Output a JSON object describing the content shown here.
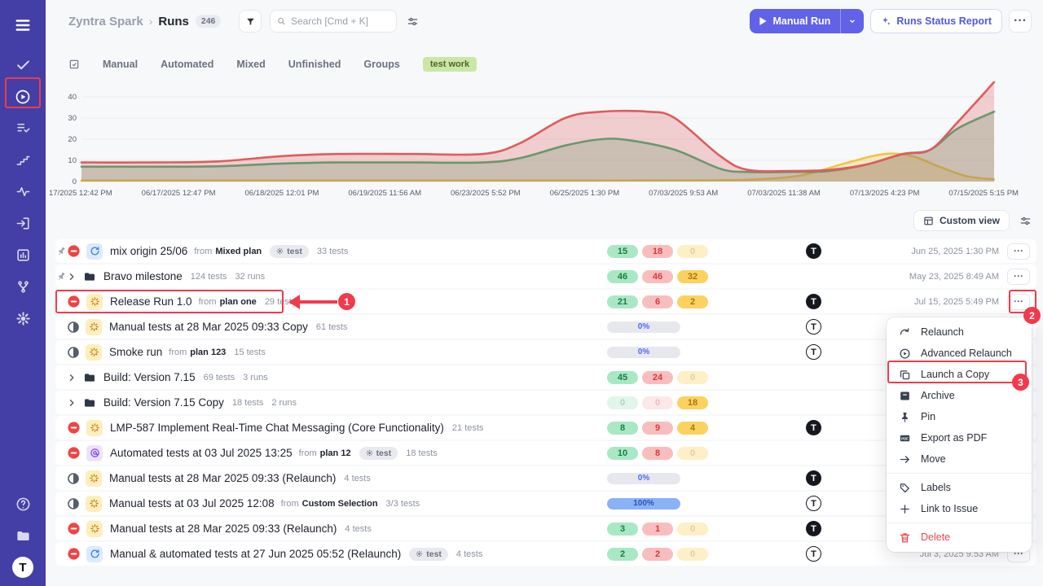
{
  "colors": {
    "sidebar_bg": "#443fa6",
    "accent": "#6062e8",
    "annotation": "#f23a4c",
    "chart_red": "#e05c5c",
    "chart_green": "#3fae73",
    "chart_yellow": "#eec643",
    "badge_green_text": "#17803d",
    "badge_red_text": "#dc3a3a",
    "badge_yellow_text": "#b07409"
  },
  "sidebar": {
    "top_icons": [
      "hamburger-menu",
      "checkmark",
      "runs-play",
      "test-plans",
      "milestones-steps",
      "defects-pulse",
      "requirements-import",
      "reports-chart",
      "integrations-branch",
      "settings-gear"
    ],
    "active_icon": "runs-play",
    "bottom_icons": [
      "help-circle",
      "projects-folder"
    ],
    "avatar_letter": "T"
  },
  "header": {
    "breadcrumb": {
      "project": "Zyntra Spark",
      "separator": "›",
      "section": "Runs",
      "count": "246"
    },
    "search": {
      "placeholder": "Search [Cmd + K]"
    },
    "primary_button": "Manual Run",
    "report_button": "Runs Status Report"
  },
  "tabs": {
    "items": [
      "Manual",
      "Automated",
      "Mixed",
      "Unfinished",
      "Groups"
    ],
    "filter_tag": "test work"
  },
  "chart_data": {
    "type": "area",
    "title": "",
    "ylim": [
      0,
      40
    ],
    "y_ticks": [
      0,
      10,
      20,
      30,
      40
    ],
    "x_labels": [
      "17/2025 12:42 PM",
      "06/17/2025 12:47 PM",
      "06/18/2025 12:01 PM",
      "06/19/2025 11:56 AM",
      "06/23/2025 5:52 PM",
      "06/25/2025 1:30 PM",
      "07/03/2025 9:53 AM",
      "07/03/2025 11:38 AM",
      "07/13/2025 4:23 PM",
      "07/15/2025 5:15 PM"
    ],
    "grid": true,
    "legend": false,
    "series": [
      {
        "name": "failed-red",
        "color": "#e05c5c",
        "fill": "rgba(224,92,92,0.28)",
        "points": [
          [
            0,
            9
          ],
          [
            0.08,
            9
          ],
          [
            0.15,
            9.5
          ],
          [
            0.22,
            12
          ],
          [
            0.28,
            13
          ],
          [
            0.36,
            13
          ],
          [
            0.44,
            13
          ],
          [
            0.48,
            18
          ],
          [
            0.53,
            30
          ],
          [
            0.57,
            33
          ],
          [
            0.62,
            33
          ],
          [
            0.65,
            30
          ],
          [
            0.7,
            12
          ],
          [
            0.73,
            5.5
          ],
          [
            0.78,
            5
          ],
          [
            0.82,
            5.5
          ],
          [
            0.86,
            8
          ],
          [
            0.9,
            13
          ],
          [
            0.93,
            15
          ],
          [
            0.96,
            28
          ],
          [
            1,
            47
          ]
        ]
      },
      {
        "name": "passed-green",
        "color": "#3fae73",
        "fill": "rgba(63,174,115,0.28)",
        "points": [
          [
            0,
            7
          ],
          [
            0.08,
            7
          ],
          [
            0.15,
            7.2
          ],
          [
            0.22,
            8.5
          ],
          [
            0.28,
            9
          ],
          [
            0.36,
            9
          ],
          [
            0.44,
            9
          ],
          [
            0.48,
            11
          ],
          [
            0.53,
            17
          ],
          [
            0.57,
            20
          ],
          [
            0.6,
            19.5
          ],
          [
            0.65,
            15
          ],
          [
            0.7,
            6
          ],
          [
            0.73,
            4.5
          ],
          [
            0.78,
            4.5
          ],
          [
            0.82,
            5
          ],
          [
            0.86,
            8
          ],
          [
            0.9,
            13
          ],
          [
            0.93,
            15
          ],
          [
            0.96,
            25
          ],
          [
            1,
            33
          ]
        ]
      },
      {
        "name": "in-progress-yellow",
        "color": "#eec643",
        "fill": "rgba(238,198,67,0.3)",
        "points": [
          [
            0,
            0.4
          ],
          [
            0.3,
            0.4
          ],
          [
            0.55,
            0.4
          ],
          [
            0.68,
            0.5
          ],
          [
            0.74,
            1
          ],
          [
            0.79,
            3
          ],
          [
            0.84,
            9
          ],
          [
            0.88,
            13
          ],
          [
            0.91,
            12
          ],
          [
            0.94,
            7
          ],
          [
            0.97,
            2.5
          ],
          [
            1,
            1
          ]
        ]
      }
    ]
  },
  "toolbar": {
    "custom_view_label": "Custom view"
  },
  "runs": [
    {
      "pinned": true,
      "status": "blocked",
      "type": "mixed",
      "title": "mix origin 25/06",
      "from_label": "from",
      "plan": "Mixed plan",
      "tag": "test",
      "tests": "33 tests",
      "badges": [
        {
          "v": "15",
          "c": "g",
          "solid": true
        },
        {
          "v": "18",
          "c": "r",
          "solid": true
        },
        {
          "v": "0",
          "c": "y",
          "solid": false
        }
      ],
      "avatar": "filled",
      "date": "Jun 25, 2025 1:30 PM"
    },
    {
      "pinned": true,
      "chevron": true,
      "folder": true,
      "title": "Bravo milestone",
      "tests": "124 tests",
      "runs_count": "32 runs",
      "badges": [
        {
          "v": "46",
          "c": "g",
          "solid": true
        },
        {
          "v": "46",
          "c": "r",
          "solid": true
        },
        {
          "v": "32",
          "c": "y",
          "solid": true
        }
      ],
      "date": "May 23, 2025 8:49 AM"
    },
    {
      "status": "blocked",
      "type": "manual",
      "title": "Release Run 1.0",
      "from_label": "from",
      "plan": "plan one",
      "tests": "29 tests",
      "badges": [
        {
          "v": "21",
          "c": "g",
          "solid": true
        },
        {
          "v": "6",
          "c": "r",
          "solid": true
        },
        {
          "v": "2",
          "c": "y",
          "solid": true
        }
      ],
      "avatar": "filled",
      "date": "Jul 15, 2025 5:49 PM"
    },
    {
      "status": "in_progress",
      "type": "manual",
      "title": "Manual tests at 28 Mar 2025 09:33 Copy",
      "tests": "61 tests",
      "progress": {
        "label": "0%",
        "fill": 0
      },
      "avatar": "outline"
    },
    {
      "status": "in_progress",
      "type": "manual",
      "title": "Smoke run",
      "from_label": "from",
      "plan": "plan 123",
      "tests": "15 tests",
      "progress": {
        "label": "0%",
        "fill": 0
      },
      "avatar": "outline"
    },
    {
      "chevron": true,
      "folder": true,
      "title": "Build: Version 7.15",
      "tests": "69 tests",
      "runs_count": "3 runs",
      "badges": [
        {
          "v": "45",
          "c": "g",
          "solid": true
        },
        {
          "v": "24",
          "c": "r",
          "solid": true
        },
        {
          "v": "0",
          "c": "y",
          "solid": false
        }
      ]
    },
    {
      "chevron": true,
      "folder": true,
      "title": "Build: Version 7.15 Copy",
      "tests": "18 tests",
      "runs_count": "2 runs",
      "badges": [
        {
          "v": "0",
          "c": "g",
          "solid": false
        },
        {
          "v": "0",
          "c": "r",
          "solid": false
        },
        {
          "v": "18",
          "c": "y",
          "solid": true
        }
      ]
    },
    {
      "status": "blocked",
      "type": "manual",
      "title": "LMP-587 Implement Real-Time Chat Messaging (Core Functionality)",
      "tests": "21 tests",
      "badges": [
        {
          "v": "8",
          "c": "g",
          "solid": true
        },
        {
          "v": "9",
          "c": "r",
          "solid": true
        },
        {
          "v": "4",
          "c": "y",
          "solid": true
        }
      ],
      "avatar": "filled"
    },
    {
      "status": "blocked",
      "type": "automated",
      "title": "Automated tests at 03 Jul 2025 13:25",
      "from_label": "from",
      "plan": "plan 12",
      "tag": "test",
      "tests": "18 tests",
      "badges": [
        {
          "v": "10",
          "c": "g",
          "solid": true
        },
        {
          "v": "8",
          "c": "r",
          "solid": true
        },
        {
          "v": "0",
          "c": "y",
          "solid": false
        }
      ]
    },
    {
      "status": "in_progress",
      "type": "manual",
      "title": "Manual tests at 28 Mar 2025 09:33 (Relaunch)",
      "tests": "4 tests",
      "progress": {
        "label": "0%",
        "fill": 0
      },
      "avatar": "filled"
    },
    {
      "status": "in_progress",
      "type": "manual",
      "title": "Manual tests at 03 Jul 2025 12:08",
      "from_label": "from",
      "plan": "Custom Selection",
      "tests": "3/3 tests",
      "progress": {
        "label": "100%",
        "fill": 100
      },
      "avatar": "outline"
    },
    {
      "status": "blocked",
      "type": "manual",
      "title": "Manual tests at 28 Mar 2025 09:33 (Relaunch)",
      "tests": "4 tests",
      "badges": [
        {
          "v": "3",
          "c": "g",
          "solid": true
        },
        {
          "v": "1",
          "c": "r",
          "solid": true
        },
        {
          "v": "0",
          "c": "y",
          "solid": false
        }
      ],
      "avatar": "filled"
    },
    {
      "status": "blocked",
      "type": "mixed",
      "title": "Manual & automated tests at 27 Jun 2025 05:52 (Relaunch)",
      "tag": "test",
      "tests": "4 tests",
      "badges": [
        {
          "v": "2",
          "c": "g",
          "solid": true
        },
        {
          "v": "2",
          "c": "r",
          "solid": true
        },
        {
          "v": "0",
          "c": "y",
          "solid": false
        }
      ],
      "avatar": "outline",
      "date": "Jul 3, 2025 9:53 AM"
    }
  ],
  "context_menu": {
    "items": [
      {
        "icon": "relaunch",
        "label": "Relaunch"
      },
      {
        "icon": "advanced-relaunch",
        "label": "Advanced Relaunch"
      },
      {
        "icon": "copy",
        "label": "Launch a Copy"
      },
      {
        "icon": "archive",
        "label": "Archive"
      },
      {
        "icon": "pin",
        "label": "Pin"
      },
      {
        "icon": "pdf",
        "label": "Export as PDF"
      },
      {
        "icon": "move",
        "label": "Move",
        "divider_after": true
      },
      {
        "icon": "labels",
        "label": "Labels"
      },
      {
        "icon": "plus",
        "label": "Link to Issue",
        "divider_after": true
      },
      {
        "icon": "trash",
        "label": "Delete",
        "danger": true
      }
    ]
  },
  "annotations": {
    "step1": "1",
    "step2": "2",
    "step3": "3"
  }
}
